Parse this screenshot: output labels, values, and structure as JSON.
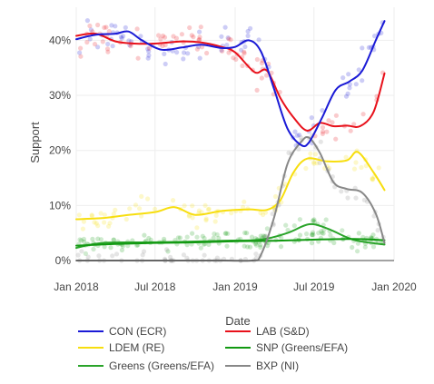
{
  "chart_data": {
    "type": "line",
    "xlabel": "Date",
    "ylabel": "Support",
    "xlim": [
      "2018-01-01",
      "2020-01-01"
    ],
    "ylim": [
      0,
      46
    ],
    "x_ticks": [
      {
        "date": "2018-01-01",
        "label": "Jan 2018"
      },
      {
        "date": "2018-07-01",
        "label": "Jul 2018"
      },
      {
        "date": "2019-01-01",
        "label": "Jan 2019"
      },
      {
        "date": "2019-07-01",
        "label": "Jul 2019"
      },
      {
        "date": "2020-01-01",
        "label": "Jan 2020"
      }
    ],
    "y_ticks": [
      {
        "value": 0,
        "label": "0%"
      },
      {
        "value": 10,
        "label": "10%"
      },
      {
        "value": 20,
        "label": "20%"
      },
      {
        "value": 30,
        "label": "30%"
      },
      {
        "value": 40,
        "label": "40%"
      }
    ],
    "grid": true,
    "legend_position": "bottom",
    "series": [
      {
        "name": "CON (ECR)",
        "color": "#1a1ad6",
        "points": [
          [
            "2018-01-01",
            40.2
          ],
          [
            "2018-02-15",
            41.0
          ],
          [
            "2018-04-01",
            41.2
          ],
          [
            "2018-05-01",
            41.6
          ],
          [
            "2018-06-01",
            40.0
          ],
          [
            "2018-07-15",
            38.3
          ],
          [
            "2018-09-01",
            38.7
          ],
          [
            "2018-10-15",
            39.2
          ],
          [
            "2018-12-01",
            38.6
          ],
          [
            "2019-01-01",
            38.8
          ],
          [
            "2019-02-01",
            40.0
          ],
          [
            "2019-03-01",
            38.0
          ],
          [
            "2019-04-01",
            31.0
          ],
          [
            "2019-05-01",
            24.0
          ],
          [
            "2019-06-01",
            21.0
          ],
          [
            "2019-06-20",
            21.5
          ],
          [
            "2019-07-20",
            26.0
          ],
          [
            "2019-08-20",
            31.0
          ],
          [
            "2019-09-20",
            32.5
          ],
          [
            "2019-10-20",
            34.5
          ],
          [
            "2019-11-20",
            40.0
          ],
          [
            "2019-12-10",
            43.5
          ]
        ]
      },
      {
        "name": "LAB (S&D)",
        "color": "#e8111b",
        "points": [
          [
            "2018-01-01",
            40.8
          ],
          [
            "2018-02-15",
            41.2
          ],
          [
            "2018-04-01",
            39.8
          ],
          [
            "2018-05-15",
            39.4
          ],
          [
            "2018-07-01",
            39.4
          ],
          [
            "2018-09-01",
            39.8
          ],
          [
            "2018-10-15",
            39.6
          ],
          [
            "2018-12-01",
            38.8
          ],
          [
            "2019-01-01",
            37.8
          ],
          [
            "2019-02-15",
            34.2
          ],
          [
            "2019-03-15",
            34.5
          ],
          [
            "2019-04-15",
            29.5
          ],
          [
            "2019-05-15",
            26.0
          ],
          [
            "2019-06-15",
            23.6
          ],
          [
            "2019-07-15",
            25.0
          ],
          [
            "2019-08-15",
            24.4
          ],
          [
            "2019-09-15",
            24.5
          ],
          [
            "2019-10-15",
            24.4
          ],
          [
            "2019-11-15",
            27.0
          ],
          [
            "2019-12-10",
            34.0
          ]
        ]
      },
      {
        "name": "LDEM (RE)",
        "color": "#f7de0f",
        "points": [
          [
            "2018-01-01",
            7.5
          ],
          [
            "2018-03-01",
            7.7
          ],
          [
            "2018-05-01",
            8.3
          ],
          [
            "2018-07-01",
            8.8
          ],
          [
            "2018-08-15",
            9.7
          ],
          [
            "2018-10-01",
            8.3
          ],
          [
            "2018-12-01",
            9.0
          ],
          [
            "2019-02-01",
            9.3
          ],
          [
            "2019-03-15",
            9.2
          ],
          [
            "2019-04-15",
            11.0
          ],
          [
            "2019-05-15",
            16.0
          ],
          [
            "2019-06-15",
            18.5
          ],
          [
            "2019-08-01",
            18.0
          ],
          [
            "2019-09-15",
            18.2
          ],
          [
            "2019-10-10",
            19.7
          ],
          [
            "2019-11-15",
            16.0
          ],
          [
            "2019-12-10",
            12.8
          ]
        ]
      },
      {
        "name": "SNP (Greens/EFA)",
        "color": "#119911",
        "points": [
          [
            "2018-01-01",
            2.7
          ],
          [
            "2018-04-01",
            3.0
          ],
          [
            "2018-07-01",
            3.2
          ],
          [
            "2018-10-01",
            3.3
          ],
          [
            "2019-01-01",
            3.5
          ],
          [
            "2019-04-01",
            3.6
          ],
          [
            "2019-07-01",
            3.8
          ],
          [
            "2019-10-01",
            3.9
          ],
          [
            "2019-12-10",
            3.7
          ]
        ]
      },
      {
        "name": "Greens (Greens/EFA)",
        "color": "#2aa42a",
        "points": [
          [
            "2018-01-01",
            2.3
          ],
          [
            "2018-03-01",
            3.2
          ],
          [
            "2018-06-01",
            3.3
          ],
          [
            "2018-09-01",
            3.4
          ],
          [
            "2018-12-01",
            3.6
          ],
          [
            "2019-03-01",
            3.8
          ],
          [
            "2019-05-01",
            5.0
          ],
          [
            "2019-06-20",
            6.6
          ],
          [
            "2019-08-01",
            5.8
          ],
          [
            "2019-09-15",
            4.2
          ],
          [
            "2019-10-15",
            3.5
          ],
          [
            "2019-12-10",
            2.9
          ]
        ]
      },
      {
        "name": "BXP (NI)",
        "color": "#888888",
        "points": [
          [
            "2018-01-01",
            0.0
          ],
          [
            "2018-06-01",
            0.0
          ],
          [
            "2018-12-01",
            0.0
          ],
          [
            "2019-02-10",
            0.0
          ],
          [
            "2019-03-01",
            1.0
          ],
          [
            "2019-04-01",
            8.0
          ],
          [
            "2019-05-01",
            17.5
          ],
          [
            "2019-06-01",
            21.5
          ],
          [
            "2019-06-20",
            22.3
          ],
          [
            "2019-07-15",
            19.5
          ],
          [
            "2019-08-15",
            14.2
          ],
          [
            "2019-09-15",
            13.0
          ],
          [
            "2019-10-20",
            12.3
          ],
          [
            "2019-11-20",
            8.5
          ],
          [
            "2019-12-10",
            3.2
          ]
        ]
      }
    ]
  }
}
